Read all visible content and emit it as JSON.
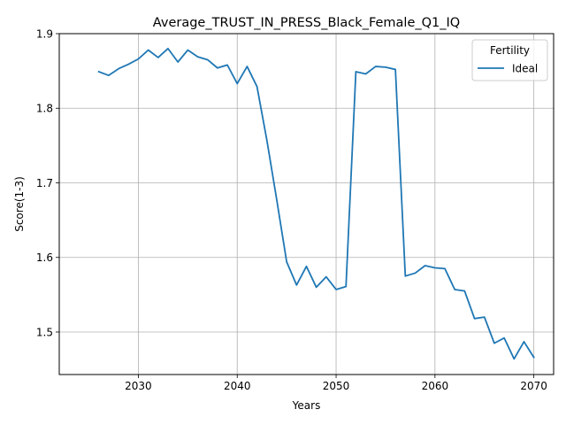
{
  "chart_data": {
    "type": "line",
    "title": "Average_TRUST_IN_PRESS_Black_Female_Q1_IQ",
    "xlabel": "Years",
    "ylabel": "Score(1-3)",
    "xlim": [
      2022,
      2072
    ],
    "ylim": [
      1.443,
      1.9
    ],
    "xticks": [
      2030,
      2040,
      2050,
      2060,
      2070
    ],
    "yticks": [
      1.5,
      1.6,
      1.7,
      1.8,
      1.9
    ],
    "xtick_labels": [
      "2030",
      "2040",
      "2050",
      "2060",
      "2070"
    ],
    "ytick_labels": [
      "1.5",
      "1.6",
      "1.7",
      "1.8",
      "1.9"
    ],
    "grid": true,
    "legend": {
      "title": "Fertility",
      "position": "top-right"
    },
    "series": [
      {
        "name": "Ideal",
        "color": "#1f77b4",
        "x": [
          2026,
          2027,
          2028,
          2029,
          2030,
          2031,
          2032,
          2033,
          2034,
          2035,
          2036,
          2037,
          2038,
          2039,
          2040,
          2041,
          2042,
          2043,
          2044,
          2045,
          2046,
          2047,
          2048,
          2049,
          2050,
          2051,
          2052,
          2053,
          2054,
          2055,
          2056,
          2057,
          2058,
          2059,
          2060,
          2061,
          2062,
          2063,
          2064,
          2065,
          2066,
          2067,
          2068,
          2069,
          2070
        ],
        "y": [
          1.849,
          1.844,
          1.853,
          1.859,
          1.866,
          1.878,
          1.868,
          1.88,
          1.862,
          1.878,
          1.869,
          1.865,
          1.854,
          1.858,
          1.833,
          1.856,
          1.829,
          1.757,
          1.677,
          1.594,
          1.563,
          1.588,
          1.56,
          1.574,
          1.557,
          1.561,
          1.849,
          1.846,
          1.856,
          1.855,
          1.852,
          1.575,
          1.579,
          1.589,
          1.586,
          1.585,
          1.557,
          1.555,
          1.518,
          1.52,
          1.485,
          1.492,
          1.464,
          1.487,
          1.466
        ]
      }
    ]
  }
}
